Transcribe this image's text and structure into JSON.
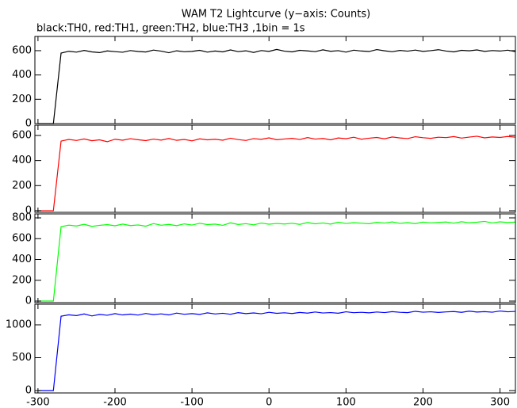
{
  "chart_data": [
    {
      "type": "line",
      "title": "WAM T2 Lightcurve (y−axis: Counts)",
      "subtitle": "black:TH0, red:TH1, green:TH2, blue:TH3 ,1bin = 1s",
      "x": [
        -300,
        -290,
        -280,
        -270,
        -260,
        -250,
        -240,
        -230,
        -220,
        -210,
        -200,
        -190,
        -180,
        -170,
        -160,
        -150,
        -140,
        -130,
        -120,
        -110,
        -100,
        -90,
        -80,
        -70,
        -60,
        -50,
        -40,
        -30,
        -20,
        -10,
        0,
        10,
        20,
        30,
        40,
        50,
        60,
        70,
        80,
        90,
        100,
        110,
        120,
        130,
        140,
        150,
        160,
        170,
        180,
        190,
        200,
        210,
        220,
        230,
        240,
        250,
        260,
        270,
        280,
        290,
        300,
        310,
        320
      ],
      "series": [
        {
          "color": "#000000",
          "values": [
            0,
            0,
            0,
            580,
            595,
            588,
            602,
            590,
            584,
            598,
            592,
            587,
            601,
            593,
            589,
            605,
            596,
            583,
            599,
            591,
            594,
            603,
            588,
            597,
            590,
            606,
            592,
            599,
            585,
            601,
            594,
            610,
            596,
            590,
            603,
            598,
            592,
            607,
            595,
            600,
            588,
            604,
            597,
            593,
            609,
            599,
            591,
            602,
            596,
            605,
            594,
            600,
            608,
            597,
            590,
            603,
            599,
            606,
            594,
            601,
            597,
            604,
            592
          ]
        }
      ],
      "xlim": [
        -304,
        320
      ],
      "ylim": [
        0,
        717
      ],
      "yticks": [
        0,
        200,
        400,
        600
      ]
    },
    {
      "type": "line",
      "x": [
        -300,
        -290,
        -280,
        -270,
        -260,
        -250,
        -240,
        -230,
        -220,
        -210,
        -200,
        -190,
        -180,
        -170,
        -160,
        -150,
        -140,
        -130,
        -120,
        -110,
        -100,
        -90,
        -80,
        -70,
        -60,
        -50,
        -40,
        -30,
        -20,
        -10,
        0,
        10,
        20,
        30,
        40,
        50,
        60,
        70,
        80,
        90,
        100,
        110,
        120,
        130,
        140,
        150,
        160,
        170,
        180,
        190,
        200,
        210,
        220,
        230,
        240,
        250,
        260,
        270,
        280,
        290,
        300,
        310,
        320
      ],
      "series": [
        {
          "color": "#ff0000",
          "values": [
            0,
            0,
            0,
            555,
            568,
            560,
            572,
            558,
            565,
            550,
            570,
            562,
            574,
            566,
            559,
            571,
            563,
            576,
            561,
            568,
            557,
            573,
            565,
            570,
            562,
            578,
            567,
            560,
            575,
            569,
            581,
            566,
            572,
            577,
            568,
            583,
            571,
            576,
            565,
            580,
            574,
            586,
            570,
            578,
            584,
            573,
            588,
            580,
            575,
            590,
            582,
            577,
            586,
            583,
            591,
            579,
            587,
            594,
            581,
            588,
            584,
            592,
            586
          ]
        }
      ],
      "xlim": [
        -304,
        320
      ],
      "ylim": [
        -13,
        682
      ],
      "yticks": [
        0,
        200,
        400,
        600
      ]
    },
    {
      "type": "line",
      "x": [
        -300,
        -290,
        -280,
        -270,
        -260,
        -250,
        -240,
        -230,
        -220,
        -210,
        -200,
        -190,
        -180,
        -170,
        -160,
        -150,
        -140,
        -130,
        -120,
        -110,
        -100,
        -90,
        -80,
        -70,
        -60,
        -50,
        -40,
        -30,
        -20,
        -10,
        0,
        10,
        20,
        30,
        40,
        50,
        60,
        70,
        80,
        90,
        100,
        110,
        120,
        130,
        140,
        150,
        160,
        170,
        180,
        190,
        200,
        210,
        220,
        230,
        240,
        250,
        260,
        270,
        280,
        290,
        300,
        310,
        320
      ],
      "series": [
        {
          "color": "#00ff00",
          "values": [
            0,
            0,
            0,
            715,
            730,
            722,
            738,
            718,
            728,
            735,
            724,
            740,
            726,
            732,
            720,
            745,
            729,
            737,
            725,
            742,
            731,
            748,
            735,
            740,
            728,
            752,
            736,
            744,
            733,
            750,
            739,
            746,
            741,
            748,
            737,
            755,
            743,
            751,
            740,
            758,
            746,
            753,
            749,
            744,
            757,
            750,
            761,
            747,
            754,
            745,
            759,
            752,
            756,
            760,
            749,
            763,
            753,
            758,
            766,
            751,
            762,
            755,
            759
          ]
        }
      ],
      "xlim": [
        -304,
        320
      ],
      "ylim": [
        -15,
        838
      ],
      "yticks": [
        0,
        200,
        400,
        600,
        800
      ]
    },
    {
      "type": "line",
      "x": [
        -300,
        -290,
        -280,
        -270,
        -260,
        -250,
        -240,
        -230,
        -220,
        -210,
        -200,
        -190,
        -180,
        -170,
        -160,
        -150,
        -140,
        -130,
        -120,
        -110,
        -100,
        -90,
        -80,
        -70,
        -60,
        -50,
        -40,
        -30,
        -20,
        -10,
        0,
        10,
        20,
        30,
        40,
        50,
        60,
        70,
        80,
        90,
        100,
        110,
        120,
        130,
        140,
        150,
        160,
        170,
        180,
        190,
        200,
        210,
        220,
        230,
        240,
        250,
        260,
        270,
        280,
        290,
        300,
        310,
        320
      ],
      "series": [
        {
          "color": "#0000ff",
          "values": [
            0,
            0,
            0,
            1130,
            1152,
            1140,
            1165,
            1135,
            1158,
            1145,
            1170,
            1150,
            1162,
            1148,
            1172,
            1155,
            1166,
            1150,
            1178,
            1160,
            1170,
            1158,
            1182,
            1165,
            1175,
            1160,
            1185,
            1170,
            1180,
            1168,
            1190,
            1175,
            1183,
            1172,
            1188,
            1178,
            1195,
            1180,
            1186,
            1176,
            1198,
            1184,
            1190,
            1182,
            1195,
            1186,
            1200,
            1190,
            1185,
            1205,
            1192,
            1198,
            1188,
            1196,
            1202,
            1190,
            1208,
            1194,
            1200,
            1192,
            1210,
            1198,
            1204
          ]
        }
      ],
      "xlim": [
        -304,
        320
      ],
      "ylim": [
        -36,
        1313
      ],
      "yticks": [
        0,
        500,
        1000
      ],
      "xticks": [
        -300,
        -200,
        -100,
        0,
        100,
        200,
        300
      ]
    }
  ]
}
